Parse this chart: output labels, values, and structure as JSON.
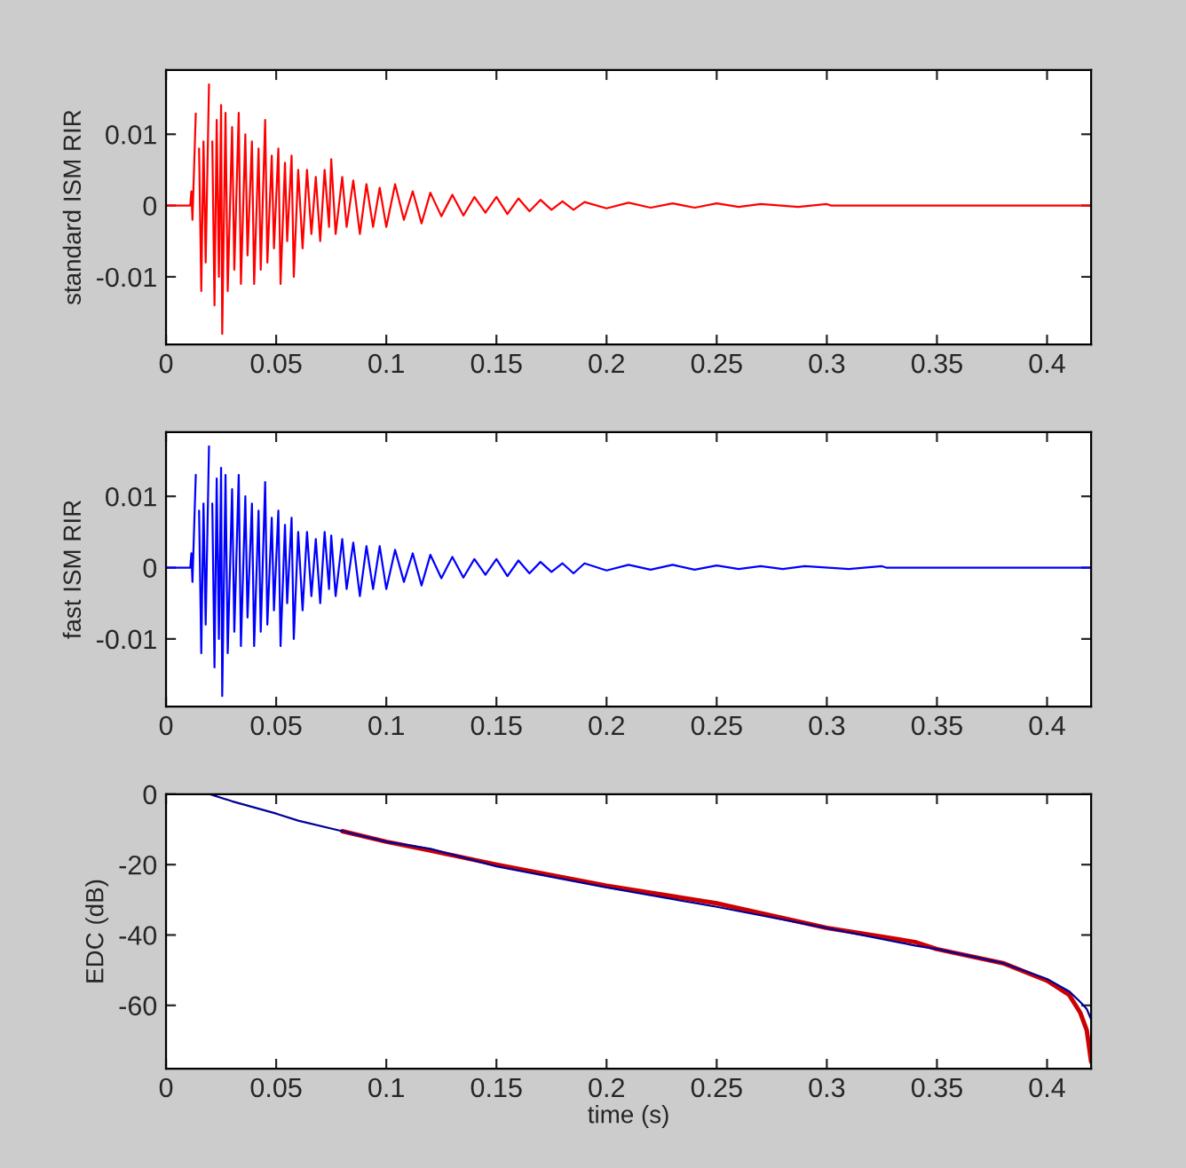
{
  "chart_data": [
    {
      "type": "line",
      "ylabel": "standard ISM RIR",
      "xlim": [
        0,
        0.42
      ],
      "ylim": [
        -0.0195,
        0.019
      ],
      "xticks": [
        0,
        0.05,
        0.1,
        0.15,
        0.2,
        0.25,
        0.3,
        0.35,
        0.4
      ],
      "yticks": [
        -0.01,
        0,
        0.01
      ],
      "grid": false,
      "series": [
        {
          "color": "#ff0000",
          "x": [
            0,
            0.011,
            0.0115,
            0.012,
            0.0135,
            0.0137,
            0.015,
            0.016,
            0.017,
            0.018,
            0.0195,
            0.0198,
            0.021,
            0.022,
            0.023,
            0.024,
            0.025,
            0.0255,
            0.027,
            0.028,
            0.03,
            0.031,
            0.033,
            0.034,
            0.036,
            0.037,
            0.039,
            0.04,
            0.042,
            0.043,
            0.045,
            0.046,
            0.048,
            0.049,
            0.051,
            0.052,
            0.054,
            0.055,
            0.057,
            0.058,
            0.06,
            0.062,
            0.064,
            0.066,
            0.068,
            0.07,
            0.072,
            0.074,
            0.075,
            0.077,
            0.08,
            0.082,
            0.085,
            0.088,
            0.091,
            0.094,
            0.097,
            0.1,
            0.104,
            0.108,
            0.112,
            0.116,
            0.12,
            0.125,
            0.13,
            0.135,
            0.14,
            0.145,
            0.15,
            0.155,
            0.16,
            0.165,
            0.17,
            0.175,
            0.18,
            0.185,
            0.19,
            0.2,
            0.21,
            0.22,
            0.23,
            0.24,
            0.25,
            0.26,
            0.27,
            0.287,
            0.3,
            0.302,
            0.42
          ],
          "values": [
            0,
            0,
            0.002,
            -0.002,
            0.0129,
            null,
            0.008,
            -0.012,
            0.009,
            -0.008,
            0.017,
            null,
            0.009,
            -0.014,
            0.012,
            -0.01,
            0.0141,
            -0.018,
            0.013,
            -0.012,
            0.011,
            -0.009,
            0.013,
            -0.011,
            0.01,
            -0.007,
            0.009,
            -0.011,
            0.008,
            -0.009,
            0.012,
            -0.008,
            0.007,
            -0.006,
            0.008,
            -0.011,
            0.006,
            -0.005,
            0.007,
            -0.01,
            0.005,
            -0.006,
            0.005,
            -0.004,
            0.004,
            -0.005,
            0.005,
            -0.003,
            0.0065,
            -0.004,
            0.004,
            -0.003,
            0.0035,
            -0.004,
            0.003,
            -0.003,
            0.0025,
            -0.003,
            0.003,
            -0.002,
            0.002,
            -0.0025,
            0.0018,
            -0.0015,
            0.0015,
            -0.0014,
            0.0012,
            -0.001,
            0.0012,
            -0.0012,
            0.001,
            -0.0008,
            0.0008,
            -0.0006,
            0.0006,
            -0.0006,
            0.0005,
            -0.0004,
            0.0004,
            -0.0003,
            0.0003,
            -0.0003,
            0.0003,
            -0.0002,
            0.0002,
            -0.0002,
            0.0002,
            0,
            0
          ]
        }
      ]
    },
    {
      "type": "line",
      "ylabel": "fast ISM RIR",
      "xlim": [
        0,
        0.42
      ],
      "ylim": [
        -0.0195,
        0.019
      ],
      "xticks": [
        0,
        0.05,
        0.1,
        0.15,
        0.2,
        0.25,
        0.3,
        0.35,
        0.4
      ],
      "yticks": [
        -0.01,
        0,
        0.01
      ],
      "grid": false,
      "series": [
        {
          "color": "#0000ff",
          "x": [
            0,
            0.011,
            0.0115,
            0.012,
            0.0135,
            0.0137,
            0.015,
            0.016,
            0.017,
            0.018,
            0.0195,
            0.0198,
            0.021,
            0.022,
            0.023,
            0.024,
            0.025,
            0.0255,
            0.027,
            0.028,
            0.03,
            0.031,
            0.033,
            0.034,
            0.036,
            0.037,
            0.039,
            0.04,
            0.042,
            0.043,
            0.045,
            0.046,
            0.048,
            0.049,
            0.051,
            0.052,
            0.054,
            0.055,
            0.057,
            0.058,
            0.06,
            0.062,
            0.064,
            0.066,
            0.068,
            0.07,
            0.072,
            0.074,
            0.075,
            0.077,
            0.08,
            0.082,
            0.085,
            0.088,
            0.091,
            0.094,
            0.097,
            0.1,
            0.104,
            0.108,
            0.112,
            0.116,
            0.12,
            0.125,
            0.13,
            0.135,
            0.14,
            0.145,
            0.15,
            0.155,
            0.16,
            0.165,
            0.17,
            0.175,
            0.18,
            0.185,
            0.19,
            0.2,
            0.21,
            0.22,
            0.23,
            0.24,
            0.25,
            0.26,
            0.27,
            0.28,
            0.29,
            0.31,
            0.325,
            0.327,
            0.42
          ],
          "values": [
            0,
            0,
            0.002,
            -0.002,
            0.013,
            null,
            0.008,
            -0.012,
            0.009,
            -0.008,
            0.017,
            null,
            0.009,
            -0.014,
            0.0125,
            -0.01,
            0.014,
            -0.018,
            0.013,
            -0.012,
            0.011,
            -0.009,
            0.013,
            -0.011,
            0.01,
            -0.007,
            0.009,
            -0.011,
            0.008,
            -0.009,
            0.012,
            -0.008,
            0.007,
            -0.006,
            0.008,
            -0.011,
            0.006,
            -0.005,
            0.007,
            -0.01,
            0.005,
            -0.006,
            0.005,
            -0.004,
            0.004,
            -0.005,
            0.005,
            -0.003,
            0.0045,
            -0.004,
            0.004,
            -0.003,
            0.0035,
            -0.004,
            0.003,
            -0.003,
            0.003,
            -0.003,
            0.0025,
            -0.002,
            0.002,
            -0.0025,
            0.0018,
            -0.0015,
            0.0015,
            -0.0014,
            0.0012,
            -0.001,
            0.0012,
            -0.0012,
            0.001,
            -0.0008,
            0.0008,
            -0.0006,
            0.0006,
            -0.0008,
            0.0006,
            -0.0004,
            0.0004,
            -0.0003,
            0.0004,
            -0.0003,
            0.0003,
            -0.0002,
            0.0002,
            -0.0002,
            0.0002,
            -0.0002,
            0.0002,
            0,
            0
          ]
        }
      ]
    },
    {
      "type": "line",
      "ylabel": "EDC (dB)",
      "xlabel": "time (s)",
      "xlim": [
        0,
        0.42
      ],
      "ylim": [
        -78,
        0
      ],
      "xticks": [
        0,
        0.05,
        0.1,
        0.15,
        0.2,
        0.25,
        0.3,
        0.35,
        0.4
      ],
      "yticks": [
        -60,
        -40,
        -20,
        0
      ],
      "grid": false,
      "series": [
        {
          "color": "#cc0000",
          "x": [
            0.08,
            0.1,
            0.12,
            0.15,
            0.2,
            0.25,
            0.3,
            0.34,
            0.35,
            0.38,
            0.4,
            0.41,
            0.415,
            0.418,
            0.42
          ],
          "values": [
            -10.5,
            -13.5,
            -16,
            -20,
            -26,
            -31,
            -38,
            -42,
            -44,
            -48,
            -53,
            -57,
            -62,
            -67,
            -76
          ]
        },
        {
          "color": "#000099",
          "x": [
            0.02,
            0.03,
            0.05,
            0.06,
            0.08,
            0.1,
            0.12,
            0.15,
            0.2,
            0.25,
            0.3,
            0.34,
            0.35,
            0.38,
            0.4,
            0.41,
            0.415,
            0.418,
            0.42
          ],
          "values": [
            0,
            -2,
            -5.5,
            -7.5,
            -10.5,
            -13.5,
            -15.5,
            -20.5,
            -26.5,
            -32,
            -38,
            -43,
            -44,
            -48,
            -52.5,
            -56,
            -59,
            -61,
            -64
          ]
        }
      ]
    }
  ]
}
